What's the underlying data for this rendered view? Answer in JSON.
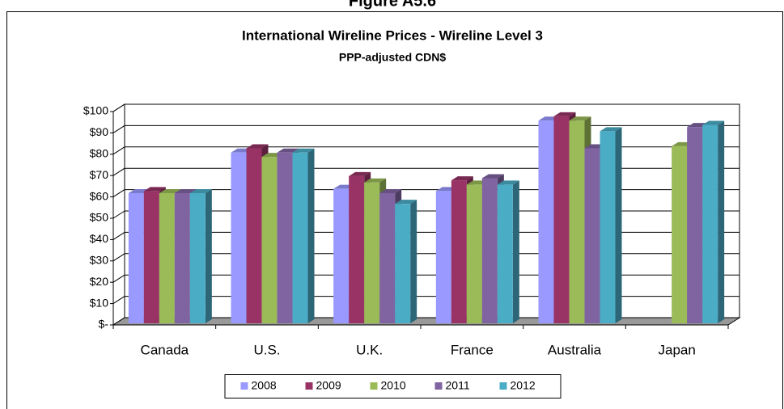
{
  "figure_title": "Figure A5.6",
  "chart_data": {
    "type": "bar3d",
    "title": "International Wireline Prices - Wireline Level 3",
    "subtitle": "PPP-adjusted CDN$",
    "categories": [
      "Canada",
      "U.S.",
      "U.K.",
      "France",
      "Australia",
      "Japan"
    ],
    "series": [
      {
        "name": "2008",
        "color": "#9999ff",
        "values": [
          61,
          80,
          63,
          62,
          95,
          null
        ]
      },
      {
        "name": "2009",
        "color": "#993366",
        "values": [
          62,
          82,
          69,
          67,
          97,
          null
        ]
      },
      {
        "name": "2010",
        "color": "#9bbb59",
        "values": [
          61,
          78,
          66,
          65,
          95,
          83
        ]
      },
      {
        "name": "2011",
        "color": "#8064a2",
        "values": [
          61,
          80,
          61,
          68,
          82,
          92
        ]
      },
      {
        "name": "2012",
        "color": "#4bacc6",
        "values": [
          61,
          80,
          56,
          65,
          90,
          93
        ]
      }
    ],
    "ylim": [
      0,
      100
    ],
    "yticks": [
      {
        "value": 0,
        "label": "$-"
      },
      {
        "value": 10,
        "label": "$10"
      },
      {
        "value": 20,
        "label": "$20"
      },
      {
        "value": 30,
        "label": "$30"
      },
      {
        "value": 40,
        "label": "$40"
      },
      {
        "value": 50,
        "label": "$50"
      },
      {
        "value": 60,
        "label": "$60"
      },
      {
        "value": 70,
        "label": "$70"
      },
      {
        "value": 80,
        "label": "$80"
      },
      {
        "value": 90,
        "label": "$90"
      },
      {
        "value": 100,
        "label": "$100"
      }
    ],
    "grid": true,
    "legend": "bottom"
  }
}
